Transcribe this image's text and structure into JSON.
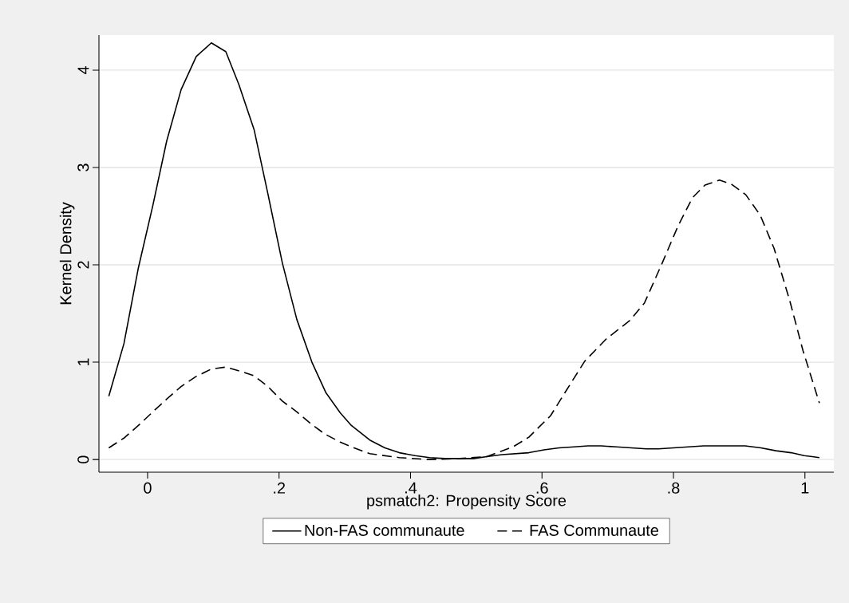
{
  "chart_data": {
    "type": "line",
    "xlabel": "psmatch2: Propensity Score",
    "ylabel": "Kernel Density",
    "xlim": [
      -0.074,
      1.044
    ],
    "ylim": [
      -0.13,
      4.36
    ],
    "xticks": [
      0,
      {
        "value": 0.2,
        "label": ".2"
      },
      {
        "value": 0.4,
        "label": ".4"
      },
      {
        "value": 0.6,
        "label": ".6"
      },
      {
        "value": 0.8,
        "label": ".8"
      },
      1
    ],
    "yticks": [
      0,
      1,
      2,
      3,
      4
    ],
    "grid": "y",
    "legend": "bottom",
    "series": [
      {
        "name": "Non-FAS communaute",
        "color": "#000000",
        "line_style": "solid",
        "x": [
          -0.059,
          -0.036,
          -0.014,
          0.008,
          0.029,
          0.051,
          0.074,
          0.097,
          0.119,
          0.139,
          0.162,
          0.183,
          0.205,
          0.227,
          0.25,
          0.271,
          0.293,
          0.31,
          0.338,
          0.361,
          0.383,
          0.407,
          0.429,
          0.452,
          0.475,
          0.496,
          0.516,
          0.539,
          0.58,
          0.603,
          0.626,
          0.649,
          0.67,
          0.69,
          0.713,
          0.736,
          0.759,
          0.777,
          0.8,
          0.823,
          0.846,
          0.869,
          0.889,
          0.909,
          0.933,
          0.956,
          0.979,
          0.999,
          1.022
        ],
        "values": [
          0.65,
          1.19,
          1.97,
          2.61,
          3.27,
          3.8,
          4.14,
          4.28,
          4.19,
          3.85,
          3.39,
          2.73,
          2.02,
          1.44,
          1.0,
          0.69,
          0.48,
          0.35,
          0.2,
          0.12,
          0.07,
          0.04,
          0.02,
          0.01,
          0.01,
          0.01,
          0.03,
          0.05,
          0.07,
          0.1,
          0.12,
          0.13,
          0.14,
          0.14,
          0.13,
          0.12,
          0.11,
          0.11,
          0.12,
          0.13,
          0.14,
          0.14,
          0.14,
          0.14,
          0.12,
          0.09,
          0.07,
          0.04,
          0.02
        ]
      },
      {
        "name": "FAS Communaute",
        "color": "#000000",
        "line_style": "dashed",
        "x": [
          -0.059,
          -0.036,
          -0.014,
          0.008,
          0.029,
          0.051,
          0.073,
          0.097,
          0.119,
          0.14,
          0.162,
          0.183,
          0.205,
          0.227,
          0.248,
          0.27,
          0.293,
          0.31,
          0.338,
          0.383,
          0.429,
          0.475,
          0.516,
          0.556,
          0.58,
          0.613,
          0.637,
          0.665,
          0.698,
          0.734,
          0.756,
          0.783,
          0.807,
          0.829,
          0.848,
          0.87,
          0.888,
          0.91,
          0.932,
          0.953,
          0.977,
          0.997,
          1.022
        ],
        "values": [
          0.12,
          0.22,
          0.35,
          0.49,
          0.62,
          0.75,
          0.85,
          0.93,
          0.95,
          0.91,
          0.86,
          0.75,
          0.6,
          0.49,
          0.37,
          0.26,
          0.18,
          0.13,
          0.06,
          0.02,
          0.0,
          0.01,
          0.03,
          0.13,
          0.23,
          0.45,
          0.71,
          1.01,
          1.24,
          1.43,
          1.61,
          2.02,
          2.4,
          2.69,
          2.82,
          2.87,
          2.83,
          2.72,
          2.51,
          2.17,
          1.63,
          1.12,
          0.58
        ]
      }
    ]
  }
}
